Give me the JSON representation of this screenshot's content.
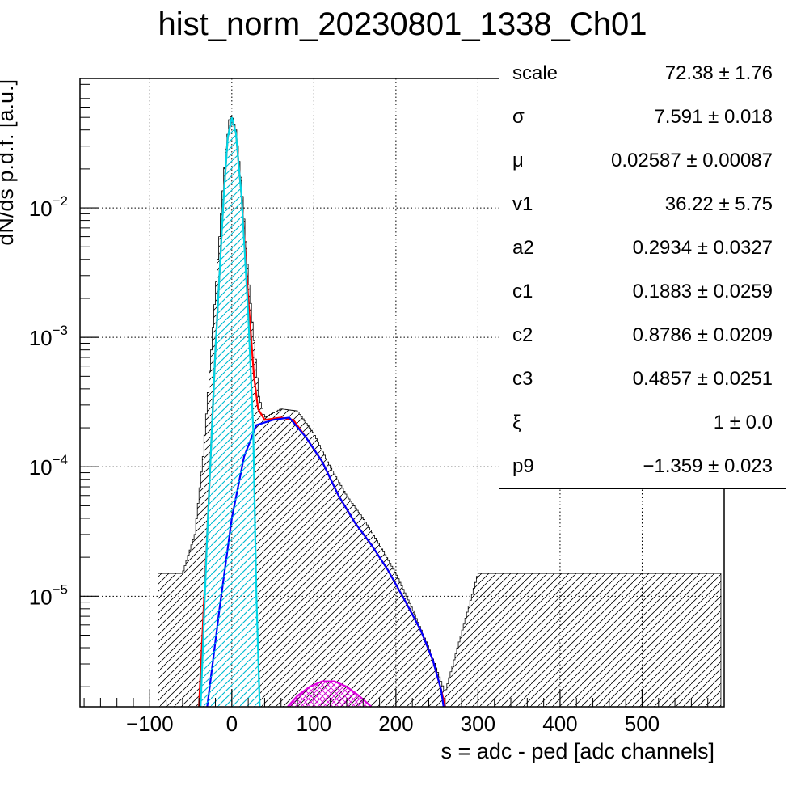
{
  "title": "hist_norm_20230801_1338_Ch01",
  "chart_data": {
    "type": "histogram",
    "xlabel": "s = adc - ped [adc channels]",
    "ylabel": "dN/ds p.d.f. [a.u.]",
    "xlim": [
      -185,
      600
    ],
    "ylim": [
      1.4e-06,
      0.1
    ],
    "y_scale": "log",
    "grid": true,
    "x_ticks": [
      -100,
      0,
      100,
      200,
      300,
      400,
      500
    ],
    "x_tick_labels": [
      "−100",
      "0",
      "100",
      "200",
      "300",
      "400",
      "500"
    ],
    "y_ticks": [
      1e-05,
      0.0001,
      0.001,
      0.01
    ],
    "y_tick_labels": [
      {
        "base": "10",
        "exp": "−5"
      },
      {
        "base": "10",
        "exp": "−4"
      },
      {
        "base": "10",
        "exp": "−3"
      },
      {
        "base": "10",
        "exp": "−2"
      }
    ],
    "histogram_profile": [
      [
        -90,
        1.5e-05
      ],
      [
        -60,
        1.5e-05
      ],
      [
        -45,
        3e-05
      ],
      [
        -35,
        0.00012
      ],
      [
        -25,
        0.0008
      ],
      [
        -15,
        0.006
      ],
      [
        -8,
        0.025
      ],
      [
        -3,
        0.048
      ],
      [
        0,
        0.052
      ],
      [
        5,
        0.04
      ],
      [
        12,
        0.015
      ],
      [
        20,
        0.003
      ],
      [
        28,
        0.0008
      ],
      [
        33,
        0.00035
      ],
      [
        40,
        0.00024
      ],
      [
        60,
        0.00028
      ],
      [
        80,
        0.00027
      ],
      [
        100,
        0.00018
      ],
      [
        120,
        0.0001
      ],
      [
        140,
        6e-05
      ],
      [
        160,
        4e-05
      ],
      [
        180,
        2.5e-05
      ],
      [
        200,
        1.5e-05
      ],
      [
        220,
        8e-06
      ],
      [
        240,
        4e-06
      ],
      [
        260,
        1.8e-06
      ],
      [
        300,
        1.5e-05
      ],
      [
        350,
        1.5e-05
      ],
      [
        400,
        1.5e-05
      ],
      [
        450,
        1.5e-05
      ],
      [
        500,
        1.5e-05
      ],
      [
        550,
        1.5e-05
      ],
      [
        595,
        1.5e-05
      ]
    ],
    "series": [
      {
        "color": "#ff0000",
        "points": [
          [
            -40,
            1.4e-06
          ],
          [
            -30,
            3e-05
          ],
          [
            -20,
            0.0008
          ],
          [
            -10,
            0.012
          ],
          [
            -5,
            0.035
          ],
          [
            0,
            0.05
          ],
          [
            5,
            0.038
          ],
          [
            12,
            0.012
          ],
          [
            20,
            0.002
          ],
          [
            27,
            0.0005
          ],
          [
            32,
            0.00028
          ],
          [
            40,
            0.00023
          ],
          [
            60,
            0.00024
          ],
          [
            75,
            0.00023
          ],
          [
            90,
            0.00017
          ],
          [
            110,
            0.00011
          ],
          [
            130,
            6e-05
          ],
          [
            150,
            3.7e-05
          ],
          [
            170,
            2.5e-05
          ],
          [
            190,
            1.6e-05
          ],
          [
            210,
            9.5e-06
          ],
          [
            230,
            5.5e-06
          ],
          [
            245,
            3.2e-06
          ],
          [
            255,
            1.9e-06
          ],
          [
            260,
            1.4e-06
          ]
        ]
      },
      {
        "color": "#0000ff",
        "points": [
          [
            -30,
            1.4e-06
          ],
          [
            -15,
            8e-06
          ],
          [
            0,
            4e-05
          ],
          [
            15,
            0.00012
          ],
          [
            30,
            0.00021
          ],
          [
            50,
            0.00023
          ],
          [
            70,
            0.00024
          ],
          [
            90,
            0.00017
          ],
          [
            110,
            0.00011
          ],
          [
            130,
            6e-05
          ],
          [
            150,
            3.7e-05
          ],
          [
            170,
            2.5e-05
          ],
          [
            190,
            1.6e-05
          ],
          [
            210,
            9.5e-06
          ],
          [
            230,
            5.5e-06
          ],
          [
            245,
            3.2e-06
          ],
          [
            255,
            1.9e-06
          ],
          [
            258,
            1.4e-06
          ]
        ]
      },
      {
        "color": "#00d6e6",
        "points": [
          [
            -38,
            1.4e-06
          ],
          [
            -30,
            3e-05
          ],
          [
            -20,
            0.0008
          ],
          [
            -10,
            0.012
          ],
          [
            -5,
            0.035
          ],
          [
            0,
            0.05
          ],
          [
            5,
            0.038
          ],
          [
            12,
            0.012
          ],
          [
            20,
            0.0015
          ],
          [
            26,
            0.0002
          ],
          [
            30,
            1e-05
          ],
          [
            34,
            1.4e-06
          ]
        ]
      },
      {
        "color": "#e000e0",
        "points": [
          [
            68,
            1.4e-06
          ],
          [
            80,
            1.7e-06
          ],
          [
            95,
            2e-06
          ],
          [
            110,
            2.2e-06
          ],
          [
            125,
            2.2e-06
          ],
          [
            140,
            2e-06
          ],
          [
            155,
            1.7e-06
          ],
          [
            170,
            1.4e-06
          ]
        ]
      }
    ]
  },
  "stats": [
    {
      "name": "scale",
      "value": "72.38 ± 1.76"
    },
    {
      "name": "σ",
      "value": "7.591 ± 0.018"
    },
    {
      "name": "μ",
      "value": "0.02587 ± 0.00087"
    },
    {
      "name": "v1",
      "value": "36.22 ± 5.75"
    },
    {
      "name": "a2",
      "value": "0.2934 ± 0.0327"
    },
    {
      "name": "c1",
      "value": "0.1883 ± 0.0259"
    },
    {
      "name": "c2",
      "value": "0.8786 ± 0.0209"
    },
    {
      "name": "c3",
      "value": "0.4857 ± 0.0251"
    },
    {
      "name": "ξ",
      "value": "1 ± 0.0"
    },
    {
      "name": "p9",
      "value": "−1.359 ± 0.023"
    }
  ]
}
